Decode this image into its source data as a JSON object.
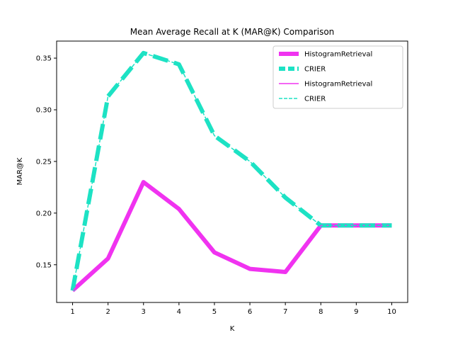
{
  "chart_data": {
    "type": "line",
    "title": "Mean Average Recall at K (MAR@K) Comparison",
    "xlabel": "K",
    "ylabel": "MAR@K",
    "x": [
      1,
      2,
      3,
      4,
      5,
      6,
      7,
      8,
      9,
      10
    ],
    "xlim": [
      0.55,
      10.45
    ],
    "ylim": [
      0.1135,
      0.3665
    ],
    "xticks": [
      "1",
      "2",
      "3",
      "4",
      "5",
      "6",
      "7",
      "8",
      "9",
      "10"
    ],
    "yticks": [
      "0.15",
      "0.20",
      "0.25",
      "0.30",
      "0.35"
    ],
    "grid": false,
    "legend_position": "top-right",
    "series": [
      {
        "name": "HistogramRetrieval",
        "color": "#f033f0",
        "style": "solid",
        "weight": "thick",
        "values": [
          0.125,
          0.156,
          0.23,
          0.204,
          0.162,
          0.146,
          0.143,
          0.188,
          0.188,
          0.188
        ]
      },
      {
        "name": "CRIER",
        "color": "#1de2c4",
        "style": "dashed",
        "weight": "thick",
        "values": [
          0.125,
          0.313,
          0.355,
          0.344,
          0.275,
          0.25,
          0.215,
          0.188,
          0.188,
          0.188
        ]
      },
      {
        "name": "HistogramRetrieval",
        "color": "#f033f0",
        "style": "solid",
        "weight": "thin",
        "values": [
          0.125,
          0.156,
          0.23,
          0.204,
          0.162,
          0.146,
          0.143,
          0.188,
          0.188,
          0.188
        ]
      },
      {
        "name": "CRIER",
        "color": "#1de2c4",
        "style": "dashed",
        "weight": "thin",
        "values": [
          0.125,
          0.313,
          0.355,
          0.344,
          0.275,
          0.25,
          0.215,
          0.188,
          0.188,
          0.188
        ]
      }
    ]
  }
}
